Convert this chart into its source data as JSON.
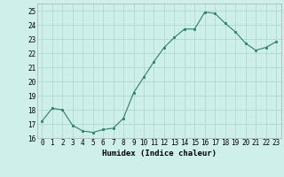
{
  "x": [
    0,
    1,
    2,
    3,
    4,
    5,
    6,
    7,
    8,
    9,
    10,
    11,
    12,
    13,
    14,
    15,
    16,
    17,
    18,
    19,
    20,
    21,
    22,
    23
  ],
  "y": [
    17.2,
    18.1,
    18.0,
    16.9,
    16.5,
    16.4,
    16.6,
    16.7,
    17.4,
    19.2,
    20.3,
    21.4,
    22.4,
    23.1,
    23.7,
    23.7,
    24.9,
    24.8,
    24.1,
    23.5,
    22.7,
    22.2,
    22.4,
    22.8
  ],
  "line_color": "#2e7d6e",
  "marker": "s",
  "marker_size": 2.0,
  "bg_color": "#cff0ea",
  "grid_color_major": "#b0d8d0",
  "grid_color_minor": "#c8ece6",
  "xlabel": "Humidex (Indice chaleur)",
  "ylim": [
    16,
    25.5
  ],
  "xlim": [
    -0.5,
    23.5
  ],
  "yticks": [
    16,
    17,
    18,
    19,
    20,
    21,
    22,
    23,
    24,
    25
  ],
  "xticks": [
    0,
    1,
    2,
    3,
    4,
    5,
    6,
    7,
    8,
    9,
    10,
    11,
    12,
    13,
    14,
    15,
    16,
    17,
    18,
    19,
    20,
    21,
    22,
    23
  ],
  "xlabel_fontsize": 6.5,
  "tick_fontsize": 5.5
}
